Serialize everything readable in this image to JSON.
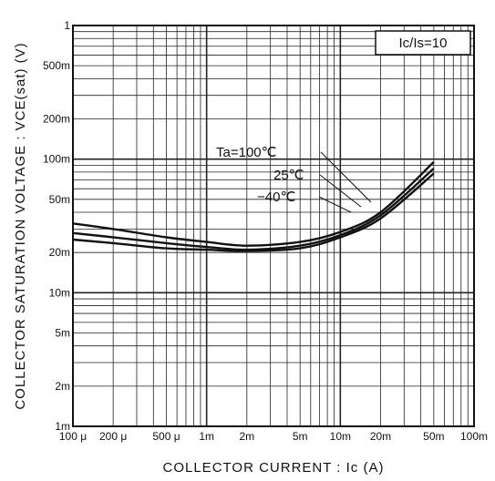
{
  "chart_data": {
    "type": "line",
    "title": "",
    "xlabel": "COLLECTOR CURRENT : Ic (A)",
    "ylabel": "COLLECTOR SATURATION VOLTAGE : VCE(sat) (V)",
    "x_scale": "log",
    "y_scale": "log",
    "xlim": [
      0.0001,
      0.1
    ],
    "ylim": [
      0.001,
      1
    ],
    "grid": true,
    "x_ticks": [
      {
        "value": 0.0001,
        "label": "100 μ"
      },
      {
        "value": 0.0002,
        "label": "200 μ"
      },
      {
        "value": 0.0005,
        "label": "500 μ"
      },
      {
        "value": 0.001,
        "label": "1m"
      },
      {
        "value": 0.002,
        "label": "2m"
      },
      {
        "value": 0.005,
        "label": "5m"
      },
      {
        "value": 0.01,
        "label": "10m"
      },
      {
        "value": 0.02,
        "label": "20m"
      },
      {
        "value": 0.05,
        "label": "50m"
      },
      {
        "value": 0.1,
        "label": "100m"
      }
    ],
    "y_ticks": [
      {
        "value": 1,
        "label": "1"
      },
      {
        "value": 0.5,
        "label": "500m"
      },
      {
        "value": 0.2,
        "label": "200m"
      },
      {
        "value": 0.1,
        "label": "100m"
      },
      {
        "value": 0.05,
        "label": "50m"
      },
      {
        "value": 0.02,
        "label": "20m"
      },
      {
        "value": 0.01,
        "label": "10m"
      },
      {
        "value": 0.005,
        "label": "5m"
      },
      {
        "value": 0.002,
        "label": "2m"
      },
      {
        "value": 0.001,
        "label": "1m"
      }
    ],
    "condition_label": "Ic/Is=10",
    "series": [
      {
        "name": "Ta=100℃",
        "x": [
          0.0001,
          0.0002,
          0.0005,
          0.001,
          0.002,
          0.005,
          0.01,
          0.02,
          0.05
        ],
        "y": [
          0.033,
          0.03,
          0.026,
          0.024,
          0.0225,
          0.024,
          0.0285,
          0.04,
          0.095
        ]
      },
      {
        "name": "25℃",
        "x": [
          0.0001,
          0.0002,
          0.0005,
          0.001,
          0.002,
          0.005,
          0.01,
          0.02,
          0.05
        ],
        "y": [
          0.028,
          0.026,
          0.0235,
          0.022,
          0.021,
          0.0225,
          0.027,
          0.038,
          0.085
        ]
      },
      {
        "name": "−40℃",
        "x": [
          0.0001,
          0.0002,
          0.0005,
          0.001,
          0.002,
          0.005,
          0.01,
          0.02,
          0.05
        ],
        "y": [
          0.025,
          0.0235,
          0.0215,
          0.021,
          0.0205,
          0.0215,
          0.026,
          0.036,
          0.078
        ]
      }
    ]
  }
}
